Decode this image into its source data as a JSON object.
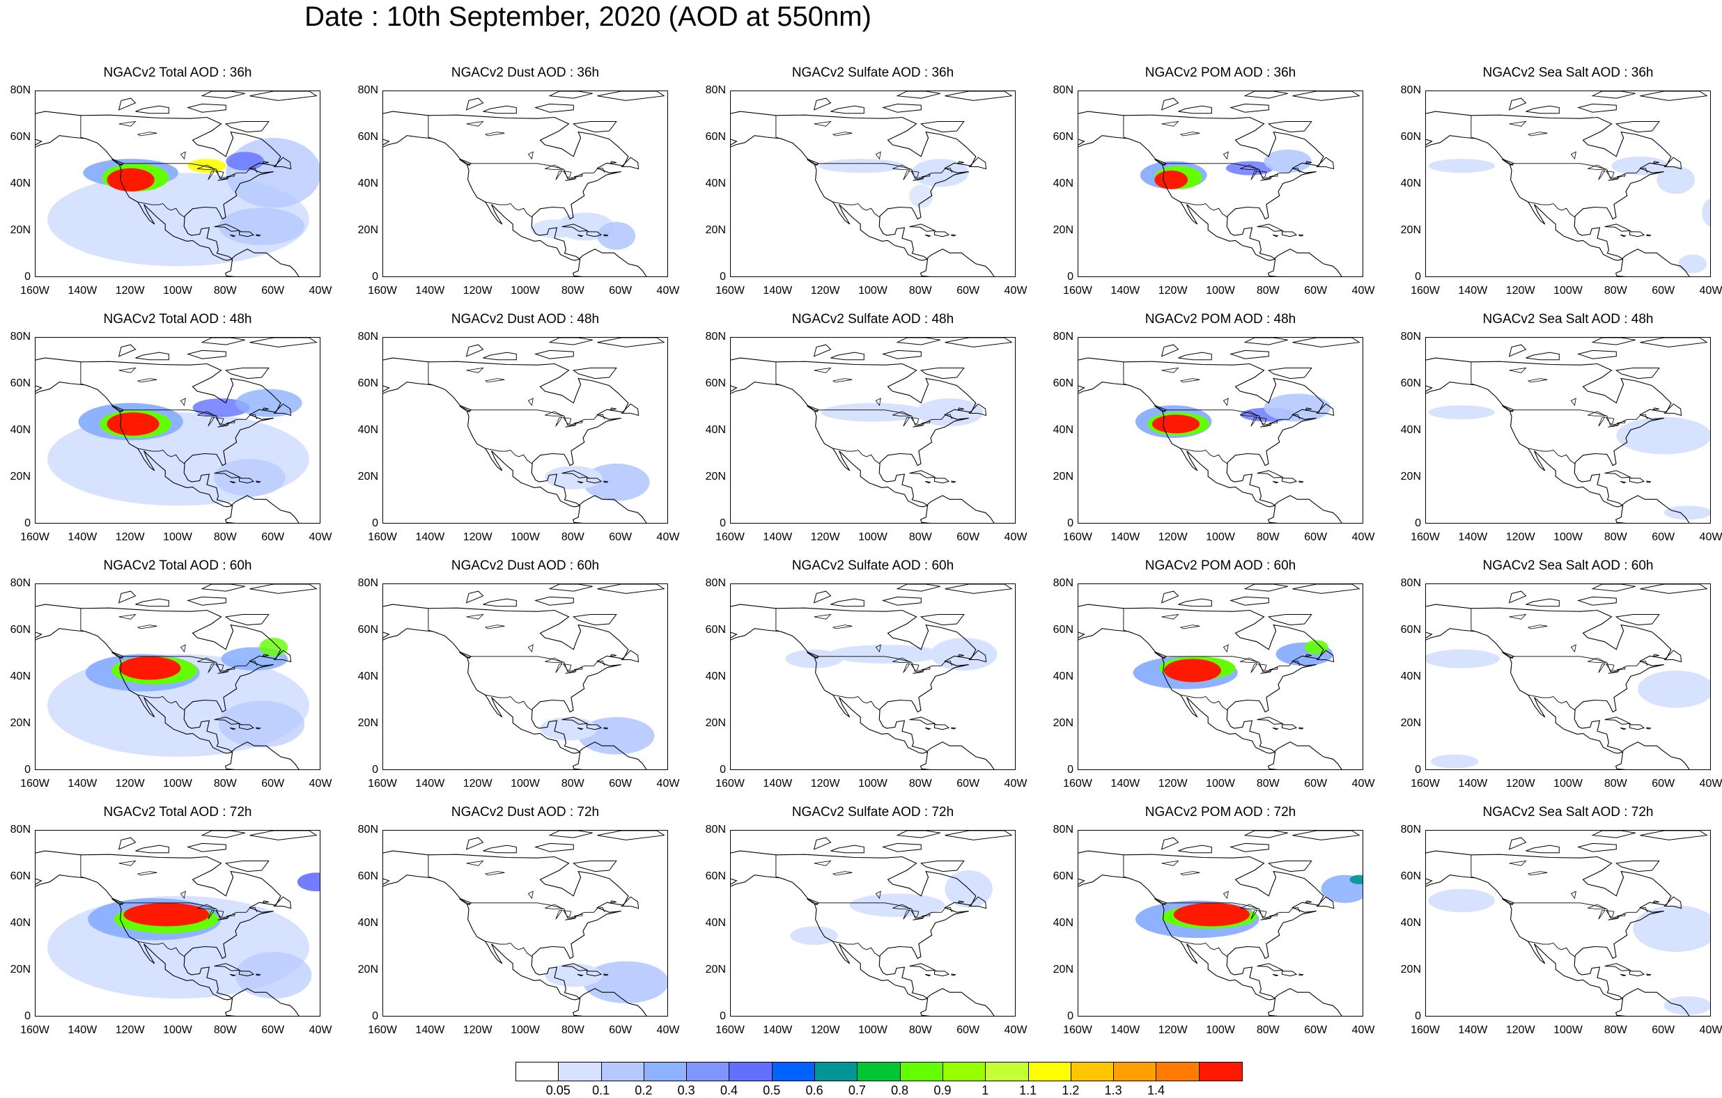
{
  "title": "Date : 10th September, 2020 (AOD at 550nm)",
  "lat_ticks": [
    "0",
    "20N",
    "40N",
    "60N",
    "80N"
  ],
  "lon_ticks": [
    "160W",
    "140W",
    "120W",
    "100W",
    "80W",
    "60W",
    "40W"
  ],
  "panels": [
    {
      "title": "NGACv2 Total AOD : 36h",
      "species": "total",
      "hour": 36
    },
    {
      "title": "NGACv2 Dust AOD : 36h",
      "species": "dust",
      "hour": 36
    },
    {
      "title": "NGACv2 Sulfate AOD : 36h",
      "species": "sulfate",
      "hour": 36
    },
    {
      "title": "NGACv2 POM AOD : 36h",
      "species": "pom",
      "hour": 36
    },
    {
      "title": "NGACv2 Sea Salt AOD : 36h",
      "species": "seasalt",
      "hour": 36
    },
    {
      "title": "NGACv2 Total AOD : 48h",
      "species": "total",
      "hour": 48
    },
    {
      "title": "NGACv2 Dust AOD : 48h",
      "species": "dust",
      "hour": 48
    },
    {
      "title": "NGACv2 Sulfate AOD : 48h",
      "species": "sulfate",
      "hour": 48
    },
    {
      "title": "NGACv2 POM AOD : 48h",
      "species": "pom",
      "hour": 48
    },
    {
      "title": "NGACv2 Sea Salt AOD : 48h",
      "species": "seasalt",
      "hour": 48
    },
    {
      "title": "NGACv2 Total AOD : 60h",
      "species": "total",
      "hour": 60
    },
    {
      "title": "NGACv2 Dust AOD : 60h",
      "species": "dust",
      "hour": 60
    },
    {
      "title": "NGACv2 Sulfate AOD : 60h",
      "species": "sulfate",
      "hour": 60
    },
    {
      "title": "NGACv2 POM AOD : 60h",
      "species": "pom",
      "hour": 60
    },
    {
      "title": "NGACv2 Sea Salt AOD : 60h",
      "species": "seasalt",
      "hour": 60
    },
    {
      "title": "NGACv2 Total AOD : 72h",
      "species": "total",
      "hour": 72
    },
    {
      "title": "NGACv2 Dust AOD : 72h",
      "species": "dust",
      "hour": 72
    },
    {
      "title": "NGACv2 Sulfate AOD : 72h",
      "species": "sulfate",
      "hour": 72
    },
    {
      "title": "NGACv2 POM AOD : 72h",
      "species": "pom",
      "hour": 72
    },
    {
      "title": "NGACv2 Sea Salt  AOD : 72h",
      "species": "seasalt",
      "hour": 72
    }
  ],
  "colorbar": {
    "colors": [
      "#ffffff",
      "#d6e2ff",
      "#b5c9ff",
      "#8eb2ff",
      "#7f96ff",
      "#6370ff",
      "#0063ff",
      "#009696",
      "#00c633",
      "#63ff00",
      "#96ff00",
      "#c6ff33",
      "#ffff00",
      "#ffc600",
      "#ffa000",
      "#ff7c00",
      "#ff1900"
    ],
    "labels": [
      "0.05",
      "0.1",
      "0.2",
      "0.3",
      "0.4",
      "0.5",
      "0.6",
      "0.7",
      "0.8",
      "0.9",
      "1",
      "1.1",
      "1.2",
      "1.3",
      "1.4"
    ]
  }
}
